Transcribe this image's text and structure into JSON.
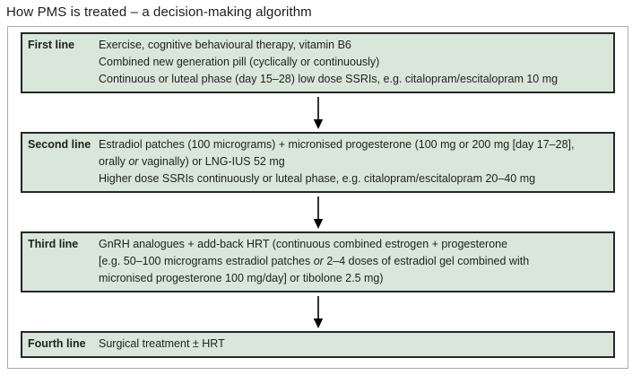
{
  "title": "How PMS is treated – a decision-making algorithm",
  "colors": {
    "box_fill": "#d9e7db",
    "box_border": "#262626",
    "container_border": "#ababab",
    "arrow": "#000000"
  },
  "algorithm": {
    "boxes": [
      {
        "label": "First line",
        "lines": [
          [
            {
              "text": "Exercise, cognitive behavioural therapy, vitamin B6"
            }
          ],
          [
            {
              "text": "Combined new generation pill (cyclically or continuously)"
            }
          ],
          [
            {
              "text": "Continuous or luteal phase (day 15–28) low dose SSRIs, e.g. citalopram/escitalopram 10 mg"
            }
          ]
        ]
      },
      {
        "label": "Second line",
        "lines": [
          [
            {
              "text": "Estradiol patches (100 micrograms) + micronised progesterone (100 mg or 200 mg [day 17–28],"
            }
          ],
          [
            {
              "text": "orally "
            },
            {
              "text": "or",
              "italic": true
            },
            {
              "text": " vaginally) or LNG-IUS 52 mg"
            }
          ],
          [
            {
              "text": "Higher dose SSRIs continuously or luteal phase, e.g. citalopram/escitalopram 20–40 mg"
            }
          ]
        ]
      },
      {
        "label": "Third line",
        "lines": [
          [
            {
              "text": "GnRH analogues + add-back HRT (continuous combined estrogen + progesterone"
            }
          ],
          [
            {
              "text": "[e.g. 50–100 micrograms estradiol patches "
            },
            {
              "text": "or",
              "italic": true
            },
            {
              "text": " 2–4 doses of estradiol gel combined with"
            }
          ],
          [
            {
              "text": "micronised progesterone 100 mg/day] or tibolone 2.5 mg)"
            }
          ]
        ]
      },
      {
        "label": "Fourth line",
        "lines": [
          [
            {
              "text": "Surgical treatment ± HRT"
            }
          ]
        ]
      }
    ]
  }
}
